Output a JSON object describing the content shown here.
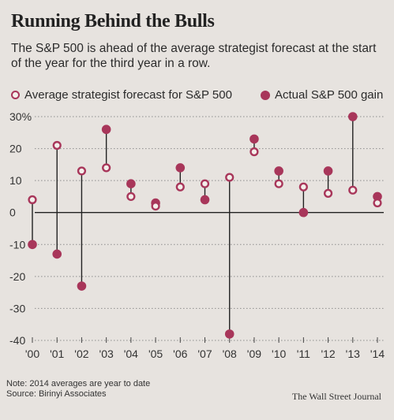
{
  "chart_data": {
    "type": "scatter",
    "title": "Running Behind the Bulls",
    "subtitle": "The S&P 500 is ahead of the average strategist forecast at the start of the year for the third year in a row.",
    "categories": [
      "'00",
      "'01",
      "'02",
      "'03",
      "'04",
      "'05",
      "'06",
      "'07",
      "'08",
      "'09",
      "'10",
      "'11",
      "'12",
      "'13",
      "'14"
    ],
    "series": [
      {
        "name": "Average strategist forecast for S&P 500",
        "marker": "open-circle",
        "values": [
          4,
          21,
          13,
          14,
          5,
          2,
          8,
          9,
          11,
          19,
          9,
          8,
          6,
          7,
          3
        ]
      },
      {
        "name": "Actual S&P 500 gain",
        "marker": "filled-circle",
        "values": [
          -10,
          -13,
          -23,
          26,
          9,
          3,
          14,
          4,
          -38,
          23,
          13,
          0,
          13,
          30,
          5
        ]
      }
    ],
    "yticks": [
      "30%",
      "20",
      "10",
      "0",
      "-10",
      "-20",
      "-30",
      "-40"
    ],
    "ylim": [
      -40,
      30
    ],
    "grid": "dotted-horizontal",
    "legend_position": "top"
  },
  "colors": {
    "accent": "#a8365a",
    "background": "#e7e3df",
    "grid": "#8d8d8d"
  },
  "note": "Note: 2014 averages are year to date",
  "source": "Source: Birinyi Associates",
  "credit": "The Wall Street Journal"
}
